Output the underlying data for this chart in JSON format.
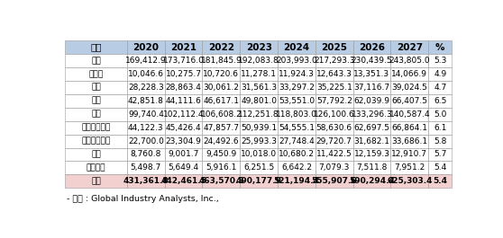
{
  "headers": [
    "지역",
    "2020",
    "2021",
    "2022",
    "2023",
    "2024",
    "2025",
    "2026",
    "2027",
    "%"
  ],
  "rows": [
    [
      "미국",
      "169,412.9",
      "173,716.0",
      "181,845.9",
      "192,083.8",
      "203,993.0",
      "217,293.3",
      "230,439.5",
      "243,805.0",
      "5.3"
    ],
    [
      "캐나다",
      "10,046.6",
      "10,275.7",
      "10,720.6",
      "11,278.1",
      "11,924.3",
      "12,643.3",
      "13,351.3",
      "14,066.9",
      "4.9"
    ],
    [
      "일본",
      "28,228.3",
      "28,863.4",
      "30,061.2",
      "31,561.3",
      "33,297.2",
      "35,225.1",
      "37,116.7",
      "39,024.5",
      "4.7"
    ],
    [
      "중국",
      "42,851.8",
      "44,111.6",
      "46,617.1",
      "49,801.0",
      "53,551.0",
      "57,792.2",
      "62,039.9",
      "66,407.5",
      "6.5"
    ],
    [
      "유럽",
      "99,740.4",
      "102,112.4",
      "106,608.2",
      "112,251.8",
      "118,803.0",
      "126,100.6",
      "133,296.3",
      "140,587.4",
      "5.0"
    ],
    [
      "아시아태평양",
      "44,122.3",
      "45,426.4",
      "47,857.7",
      "50,939.1",
      "54,555.1",
      "58,630.6",
      "62,697.5",
      "66,864.1",
      "6.1"
    ],
    [
      "라틴아메리카",
      "22,700.0",
      "23,304.9",
      "24,492.6",
      "25,993.3",
      "27,748.4",
      "29,720.7",
      "31,682.1",
      "33,686.1",
      "5.8"
    ],
    [
      "중동",
      "8,760.8",
      "9,001.7",
      "9,450.9",
      "10,018.0",
      "10,680.2",
      "11,422.5",
      "12,159.3",
      "12,910.7",
      "5.7"
    ],
    [
      "아프리카",
      "5,498.7",
      "5,649.4",
      "5,916.1",
      "6,251.5",
      "6,642.2",
      "7,079.3",
      "7,511.8",
      "7,951.2",
      "5.4"
    ]
  ],
  "total_row": [
    "합계",
    "431,361.8",
    "442,461.5",
    "463,570.3",
    "490,177.9",
    "521,194.4",
    "555,907.6",
    "590,294.4",
    "625,303.4",
    "5.4"
  ],
  "footer": "- 출처 : Global Industry Analysts, Inc.,",
  "header_bg": "#b8cce4",
  "row_bg_white": "#ffffff",
  "total_bg": "#f2d0d0",
  "border_color": "#999999",
  "font_size": 6.5,
  "header_font_size": 7.5,
  "col_widths_raw": [
    1.9,
    1.15,
    1.15,
    1.15,
    1.15,
    1.15,
    1.15,
    1.15,
    1.15,
    0.72
  ]
}
